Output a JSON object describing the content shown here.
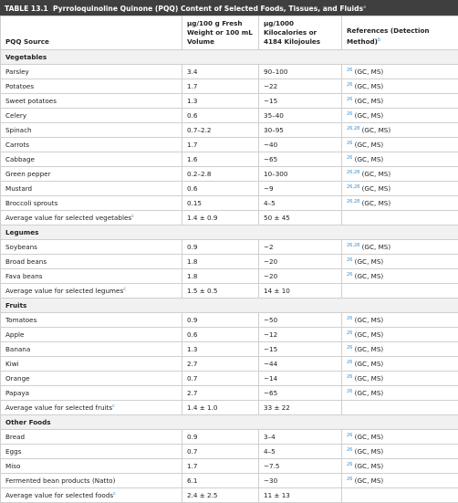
{
  "title": {
    "label": "TABLE 13.1",
    "text": "Pyrroloquinoline Quinone (PQQ) Content of Selected Foods, Tissues, and Fluids",
    "note": "a"
  },
  "table": {
    "headers": [
      {
        "text": "PQQ Source"
      },
      {
        "text": "µg/100 g Fresh Weight or 100 mL Volume"
      },
      {
        "text": "µg/1000 Kilocalories or 4184 Kilojoules"
      },
      {
        "text": "References (Detection Method)",
        "note": "b"
      }
    ],
    "sections": [
      {
        "name": "Vegetables",
        "rows": [
          {
            "source": "Parsley",
            "fresh": "3.4",
            "kcal": "90–100",
            "ref": "26",
            "method": "(GC, MS)"
          },
          {
            "source": "Potatoes",
            "fresh": "1.7",
            "kcal": "~22",
            "ref": "26",
            "method": "(GC, MS)"
          },
          {
            "source": "Sweet potatoes",
            "fresh": "1.3",
            "kcal": "~15",
            "ref": "26",
            "method": "(GC, MS)"
          },
          {
            "source": "Celery",
            "fresh": "0.6",
            "kcal": "35–40",
            "ref": "26",
            "method": "(GC, MS)"
          },
          {
            "source": "Spinach",
            "fresh": "0.7–2.2",
            "kcal": "30–95",
            "ref": "26,28",
            "method": "(GC, MS)"
          },
          {
            "source": "Carrots",
            "fresh": "1.7",
            "kcal": "~40",
            "ref": "26",
            "method": "(GC, MS)"
          },
          {
            "source": "Cabbage",
            "fresh": "1.6",
            "kcal": "~65",
            "ref": "26",
            "method": "(GC, MS)"
          },
          {
            "source": "Green pepper",
            "fresh": "0.2–2.8",
            "kcal": "10–300",
            "ref": "26,28",
            "method": "(GC, MS)"
          },
          {
            "source": "Mustard",
            "fresh": "0.6",
            "kcal": "~9",
            "ref": "26,28",
            "method": "(GC, MS)"
          },
          {
            "source": "Broccoli sprouts",
            "fresh": "0.15",
            "kcal": "4–5",
            "ref": "26,28",
            "method": "(GC, MS)"
          }
        ],
        "average": {
          "source": "Average value for selected vegetables",
          "note": "c",
          "fresh": "1.4 ± 0.9",
          "kcal": "50 ± 45"
        }
      },
      {
        "name": "Legumes",
        "rows": [
          {
            "source": "Soybeans",
            "fresh": "0.9",
            "kcal": "~2",
            "ref": "26,28",
            "method": "(GC, MS)"
          },
          {
            "source": "Broad beans",
            "fresh": "1.8",
            "kcal": "~20",
            "ref": "26",
            "method": "(GC, MS)"
          },
          {
            "source": "Fava beans",
            "fresh": "1.8",
            "kcal": "~20",
            "ref": "26",
            "method": "(GC, MS)"
          }
        ],
        "average": {
          "source": "Average value for selected legumes",
          "note": "c",
          "fresh": "1.5 ± 0.5",
          "kcal": "14 ± 10"
        }
      },
      {
        "name": "Fruits",
        "rows": [
          {
            "source": "Tomatoes",
            "fresh": "0.9",
            "kcal": "~50",
            "ref": "26",
            "method": "(GC, MS)"
          },
          {
            "source": "Apple",
            "fresh": "0.6",
            "kcal": "~12",
            "ref": "26",
            "method": "(GC, MS)"
          },
          {
            "source": "Banana",
            "fresh": "1.3",
            "kcal": "~15",
            "ref": "26",
            "method": "(GC, MS)"
          },
          {
            "source": "Kiwi",
            "fresh": "2.7",
            "kcal": "~44",
            "ref": "26",
            "method": "(GC, MS)"
          },
          {
            "source": "Orange",
            "fresh": "0.7",
            "kcal": "~14",
            "ref": "26",
            "method": "(GC, MS)"
          },
          {
            "source": "Papaya",
            "fresh": "2.7",
            "kcal": "~65",
            "ref": "26",
            "method": "(GC, MS)"
          }
        ],
        "average": {
          "source": "Average value for selected fruits",
          "note": "c",
          "fresh": "1.4 ± 1.0",
          "kcal": "33 ± 22"
        }
      },
      {
        "name": "Other Foods",
        "rows": [
          {
            "source": "Bread",
            "fresh": "0.9",
            "kcal": "3–4",
            "ref": "26",
            "method": "(GC, MS)"
          },
          {
            "source": "Eggs",
            "fresh": "0.7",
            "kcal": "4–5",
            "ref": "26",
            "method": "(GC, MS)"
          },
          {
            "source": "Miso",
            "fresh": "1.7",
            "kcal": "~7.5",
            "ref": "26",
            "method": "(GC, MS)"
          },
          {
            "source": "Fermented bean products (Natto)",
            "fresh": "6.1",
            "kcal": "~30",
            "ref": "26",
            "method": "(GC, MS)"
          }
        ],
        "average": {
          "source": "Average value for selected foods",
          "note": "c",
          "fresh": "2.4 ± 2.5",
          "kcal": "11 ± 13"
        }
      }
    ]
  }
}
